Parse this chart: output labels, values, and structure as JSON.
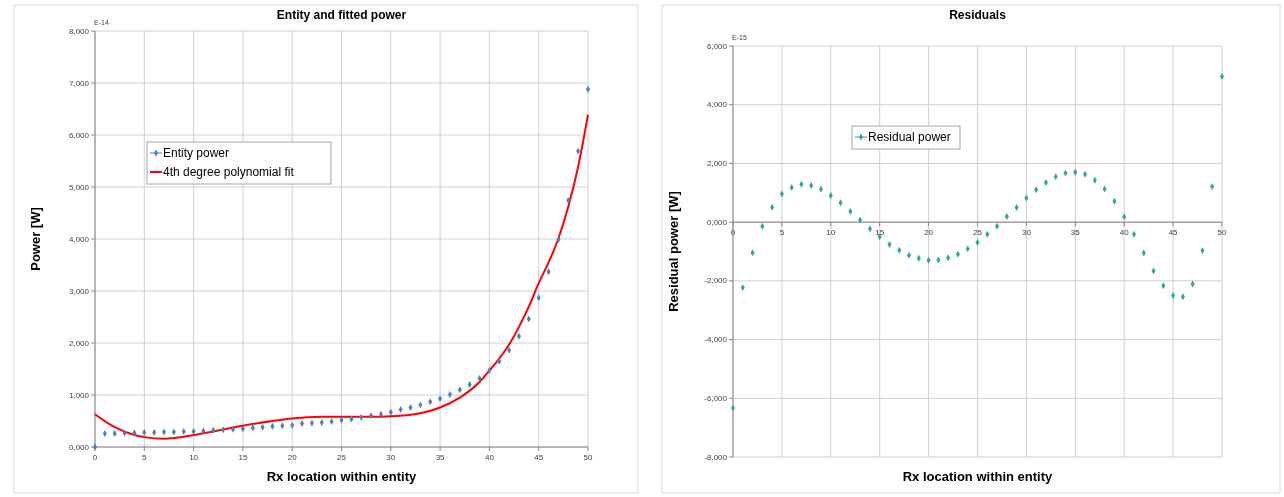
{
  "chart_data": [
    {
      "type": "scatter",
      "title": "Entity and fitted power",
      "xlabel": "Rx location within entity",
      "ylabel": "Power [W]",
      "annotations": [
        "E-14"
      ],
      "x": [
        0,
        1,
        2,
        3,
        4,
        5,
        6,
        7,
        8,
        9,
        10,
        11,
        12,
        13,
        14,
        15,
        16,
        17,
        18,
        19,
        20,
        21,
        22,
        23,
        24,
        25,
        26,
        27,
        28,
        29,
        30,
        31,
        32,
        33,
        34,
        35,
        36,
        37,
        38,
        39,
        40,
        41,
        42,
        43,
        44,
        45,
        46,
        47,
        48,
        49,
        50
      ],
      "series": [
        {
          "name": "Entity power",
          "color": "#4f81bd",
          "values": [
            0,
            0.26,
            0.26,
            0.27,
            0.27,
            0.28,
            0.28,
            0.29,
            0.29,
            0.3,
            0.3,
            0.31,
            0.32,
            0.33,
            0.34,
            0.35,
            0.37,
            0.38,
            0.4,
            0.41,
            0.42,
            0.45,
            0.46,
            0.47,
            0.49,
            0.52,
            0.54,
            0.57,
            0.6,
            0.63,
            0.67,
            0.72,
            0.76,
            0.81,
            0.87,
            0.93,
            1.01,
            1.1,
            1.2,
            1.32,
            1.47,
            1.65,
            1.86,
            2.13,
            2.46,
            2.87,
            3.37,
            3.99,
            4.74,
            5.69,
            6.88
          ]
        },
        {
          "name": "4th degree polynomial fit",
          "type": "line",
          "marker": "none",
          "color": "#ff0000",
          "x": [
            0,
            2,
            4,
            5,
            7,
            10,
            12,
            15,
            18,
            20,
            23,
            25,
            28,
            30,
            32,
            33,
            35,
            37,
            39,
            40,
            41,
            42,
            43,
            44,
            45,
            46,
            47,
            48,
            49,
            50
          ],
          "values": [
            0.63,
            0.38,
            0.23,
            0.19,
            0.16,
            0.23,
            0.3,
            0.41,
            0.5,
            0.55,
            0.58,
            0.58,
            0.58,
            0.59,
            0.62,
            0.65,
            0.76,
            0.95,
            1.25,
            1.47,
            1.7,
            1.97,
            2.31,
            2.7,
            3.15,
            3.55,
            4.01,
            4.62,
            5.39,
            6.39
          ]
        }
      ],
      "xlim": [
        0,
        50
      ],
      "xticks": [
        0,
        5,
        10,
        15,
        20,
        25,
        30,
        35,
        40,
        45,
        50
      ],
      "ylim": [
        0,
        8
      ],
      "yticks": [
        {
          "value": 0,
          "label": "0,000"
        },
        {
          "value": 1,
          "label": "1,000"
        },
        {
          "value": 2,
          "label": "2,000"
        },
        {
          "value": 3,
          "label": "3,000"
        },
        {
          "value": 4,
          "label": "4,000"
        },
        {
          "value": 5,
          "label": "5,000"
        },
        {
          "value": 6,
          "label": "6,000"
        },
        {
          "value": 7,
          "label": "7,000"
        },
        {
          "value": 8,
          "label": "8,000"
        }
      ],
      "grid": true,
      "legend": "top left",
      "marker": "diamond",
      "line_style": "solid"
    },
    {
      "type": "scatter",
      "title": "Residuals",
      "xlabel": "Rx location within entity",
      "ylabel": "Residual power [W]",
      "annotations": [
        "E-15"
      ],
      "x": [
        0,
        1,
        2,
        3,
        4,
        5,
        6,
        7,
        8,
        9,
        10,
        11,
        12,
        13,
        14,
        15,
        16,
        17,
        18,
        19,
        20,
        21,
        22,
        23,
        24,
        25,
        26,
        27,
        28,
        29,
        30,
        31,
        32,
        33,
        34,
        35,
        36,
        37,
        38,
        39,
        40,
        41,
        42,
        43,
        44,
        45,
        46,
        47,
        48,
        49,
        50
      ],
      "series": [
        {
          "name": "Residual power",
          "color": "#2ea8a0",
          "values": [
            -6.33,
            -2.23,
            -1.04,
            -0.14,
            0.51,
            0.96,
            1.18,
            1.29,
            1.25,
            1.12,
            0.91,
            0.66,
            0.36,
            0.07,
            -0.23,
            -0.5,
            -0.76,
            -0.96,
            -1.13,
            -1.23,
            -1.3,
            -1.29,
            -1.21,
            -1.09,
            -0.91,
            -0.69,
            -0.41,
            -0.14,
            0.19,
            0.5,
            0.82,
            1.1,
            1.35,
            1.55,
            1.67,
            1.7,
            1.63,
            1.43,
            1.13,
            0.71,
            0.18,
            -0.41,
            -1.05,
            -1.66,
            -2.17,
            -2.5,
            -2.54,
            -2.11,
            -0.97,
            1.21,
            4.96
          ]
        }
      ],
      "xlim": [
        0,
        50
      ],
      "xticks": [
        0,
        5,
        10,
        15,
        20,
        25,
        30,
        35,
        40,
        45,
        50
      ],
      "ylim": [
        -8,
        6
      ],
      "yticks": [
        {
          "value": -8,
          "label": "-8,000"
        },
        {
          "value": -6,
          "label": "-6,000"
        },
        {
          "value": -4,
          "label": "-4,000"
        },
        {
          "value": -2,
          "label": "-2,000"
        },
        {
          "value": 0,
          "label": "0,000"
        },
        {
          "value": 2,
          "label": "2,000"
        },
        {
          "value": 4,
          "label": "4,000"
        },
        {
          "value": 6,
          "label": "6,000"
        }
      ],
      "grid": true,
      "legend": "top left",
      "marker": "diamond"
    }
  ]
}
